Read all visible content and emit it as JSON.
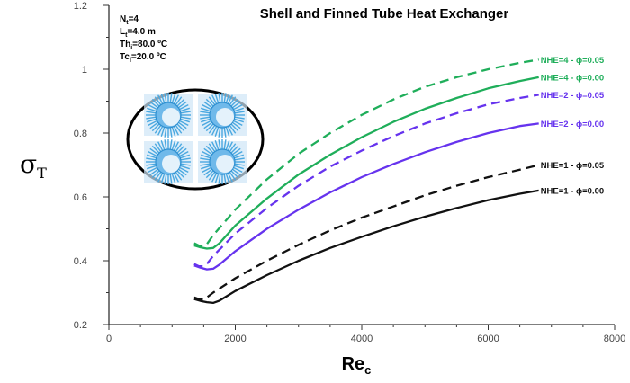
{
  "chart_data": {
    "type": "line",
    "title": "Shell and Finned Tube Heat Exchanger",
    "xlabel": {
      "main": "Re",
      "sub": "c"
    },
    "ylabel": {
      "main": "σ",
      "sub": "T"
    },
    "xlim": [
      0,
      8000
    ],
    "ylim": [
      0.2,
      1.2
    ],
    "x_ticks": [
      {
        "value": 0,
        "label": "0"
      },
      {
        "value": 2000,
        "label": "2000"
      },
      {
        "value": 4000,
        "label": "4000"
      },
      {
        "value": 6000,
        "label": "6000"
      },
      {
        "value": 8000,
        "label": "8000"
      }
    ],
    "y_ticks": [
      {
        "value": 0.2,
        "label": "0.2"
      },
      {
        "value": 0.4,
        "label": "0.4"
      },
      {
        "value": 0.6,
        "label": "0.6"
      },
      {
        "value": 0.8,
        "label": "0.8"
      },
      {
        "value": 1.0,
        "label": "1"
      },
      {
        "value": 1.2,
        "label": "1.2"
      }
    ],
    "grid": false,
    "parameters": [
      {
        "main": "N",
        "sub": "t",
        "rest": "=4"
      },
      {
        "main": "L",
        "sub": "t",
        "rest": "=4.0 m"
      },
      {
        "main": "Th",
        "sub": "i",
        "rest": "=80.0 ºC"
      },
      {
        "main": "Tc",
        "sub": "i",
        "rest": "=20.0 ºC"
      }
    ],
    "series": [
      {
        "name": "NHE=4 - ϕ=0.05",
        "color": "#1fae5a",
        "dash": true,
        "x": [
          1350,
          1420,
          1500,
          1550,
          1650,
          2000,
          2500,
          3000,
          3500,
          4000,
          4500,
          5000,
          5500,
          6000,
          6500,
          6800
        ],
        "y": [
          0.455,
          0.448,
          0.445,
          0.452,
          0.48,
          0.56,
          0.655,
          0.735,
          0.8,
          0.857,
          0.905,
          0.945,
          0.975,
          1.0,
          1.02,
          1.03
        ]
      },
      {
        "name": "NHE=4 - ϕ=0.00",
        "color": "#1fae5a",
        "dash": false,
        "x": [
          1350,
          1450,
          1550,
          1650,
          1750,
          2000,
          2500,
          3000,
          3500,
          4000,
          4500,
          5000,
          5500,
          6000,
          6500,
          6800
        ],
        "y": [
          0.448,
          0.442,
          0.438,
          0.44,
          0.455,
          0.51,
          0.595,
          0.67,
          0.732,
          0.787,
          0.835,
          0.876,
          0.91,
          0.94,
          0.963,
          0.975
        ]
      },
      {
        "name": "NHE=2 - ϕ=0.05",
        "color": "#6633ee",
        "dash": true,
        "x": [
          1350,
          1420,
          1500,
          1550,
          1650,
          2000,
          2500,
          3000,
          3500,
          4000,
          4500,
          5000,
          5500,
          6000,
          6500,
          6800
        ],
        "y": [
          0.39,
          0.383,
          0.382,
          0.39,
          0.415,
          0.485,
          0.565,
          0.635,
          0.695,
          0.745,
          0.79,
          0.83,
          0.862,
          0.89,
          0.91,
          0.92
        ]
      },
      {
        "name": "NHE=2 - ϕ=0.00",
        "color": "#6633ee",
        "dash": false,
        "x": [
          1350,
          1450,
          1550,
          1650,
          1750,
          2000,
          2500,
          3000,
          3500,
          4000,
          4500,
          5000,
          5500,
          6000,
          6500,
          6800
        ],
        "y": [
          0.385,
          0.378,
          0.373,
          0.375,
          0.388,
          0.43,
          0.5,
          0.56,
          0.614,
          0.662,
          0.703,
          0.74,
          0.772,
          0.8,
          0.822,
          0.83
        ]
      },
      {
        "name": "NHE=1 - ϕ=0.05",
        "color": "#111111",
        "dash": true,
        "x": [
          1350,
          1420,
          1500,
          1550,
          1650,
          2000,
          2500,
          3000,
          3500,
          4000,
          4500,
          5000,
          5500,
          6000,
          6500,
          6800
        ],
        "y": [
          0.285,
          0.28,
          0.279,
          0.285,
          0.3,
          0.345,
          0.4,
          0.45,
          0.495,
          0.535,
          0.57,
          0.605,
          0.635,
          0.662,
          0.685,
          0.7
        ]
      },
      {
        "name": "NHE=1 - ϕ=0.00",
        "color": "#111111",
        "dash": false,
        "x": [
          1350,
          1450,
          1550,
          1650,
          1750,
          2000,
          2500,
          3000,
          3500,
          4000,
          4500,
          5000,
          5500,
          6000,
          6500,
          6800
        ],
        "y": [
          0.28,
          0.274,
          0.27,
          0.268,
          0.275,
          0.305,
          0.355,
          0.4,
          0.44,
          0.475,
          0.508,
          0.538,
          0.565,
          0.59,
          0.61,
          0.62
        ]
      }
    ]
  }
}
